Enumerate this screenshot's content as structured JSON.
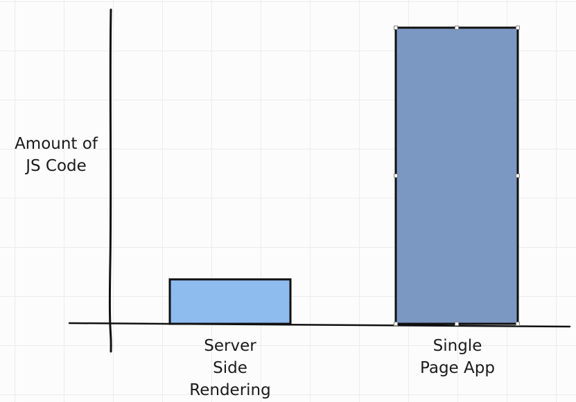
{
  "chart_data": {
    "type": "bar",
    "title": "",
    "xlabel": "",
    "ylabel": "Amount of JS Code",
    "ylabel_lines": [
      "Amount of",
      "JS Code"
    ],
    "categories": [
      "Server Side Rendering",
      "Single Page App"
    ],
    "category_lines": [
      [
        "Server",
        "Side",
        "Rendering"
      ],
      [
        "Single",
        "Page App"
      ]
    ],
    "values": [
      15,
      100
    ],
    "ylim": [
      0,
      100
    ],
    "colors": [
      "#8fbcee",
      "#7b98c2"
    ],
    "grid": true,
    "y_tick_labels_shown": false
  }
}
